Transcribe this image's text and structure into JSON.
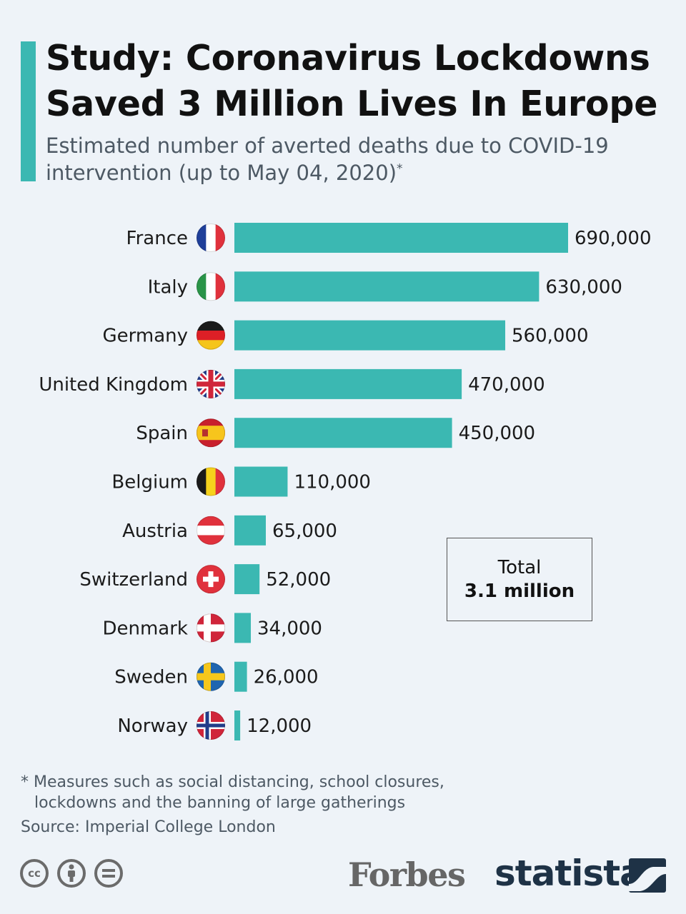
{
  "header": {
    "title_line1": "Study: Coronavirus Lockdowns",
    "title_line2": "Saved 3 Million Lives In Europe",
    "subtitle_line1": "Estimated number of averted deaths due to COVID-19",
    "subtitle_line2": "intervention (up to May 04, 2020)",
    "subtitle_marker": "*"
  },
  "chart_data": {
    "type": "bar",
    "orientation": "horizontal",
    "categories": [
      "France",
      "Italy",
      "Germany",
      "United Kingdom",
      "Spain",
      "Belgium",
      "Austria",
      "Switzerland",
      "Denmark",
      "Sweden",
      "Norway"
    ],
    "values": [
      690000,
      630000,
      560000,
      470000,
      450000,
      110000,
      65000,
      52000,
      34000,
      26000,
      12000
    ],
    "value_labels": [
      "690,000",
      "630,000",
      "560,000",
      "470,000",
      "450,000",
      "110,000",
      "65,000",
      "52,000",
      "34,000",
      "26,000",
      "12,000"
    ],
    "flags": [
      "france-flag-icon",
      "italy-flag-icon",
      "germany-flag-icon",
      "uk-flag-icon",
      "spain-flag-icon",
      "belgium-flag-icon",
      "austria-flag-icon",
      "switzerland-flag-icon",
      "denmark-flag-icon",
      "sweden-flag-icon",
      "norway-flag-icon"
    ],
    "bar_color": "#3bb8b2",
    "xlim": [
      0,
      690000
    ],
    "grid": false,
    "legend": "none"
  },
  "total": {
    "label": "Total",
    "value": "3.1 million"
  },
  "footer": {
    "note_line1": "* Measures such as social distancing, school closures,",
    "note_line2": "lockdowns and the banning of large gatherings",
    "source": "Source: Imperial College London",
    "forbes_logo": "Forbes",
    "statista_logo": "statista"
  },
  "colors": {
    "accent": "#3bb8b2",
    "background": "#eef3f8",
    "statista_navy": "#1e3246"
  }
}
